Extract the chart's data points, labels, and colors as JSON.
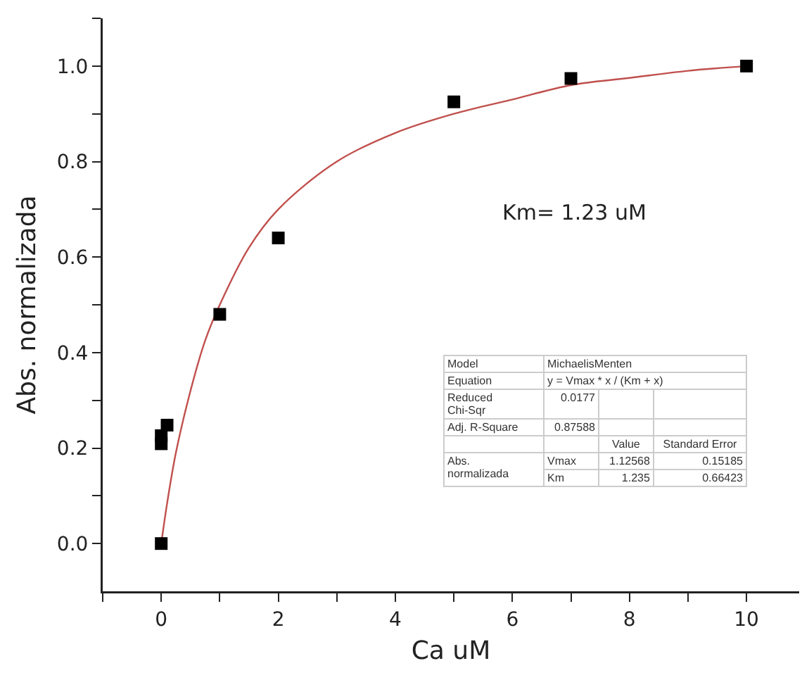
{
  "chart_data": {
    "type": "scatter",
    "xlabel": "Ca uM",
    "ylabel": "Abs. normalizada",
    "xlim": [
      -1,
      10.9
    ],
    "ylim": [
      -0.1,
      1.1
    ],
    "xticks": [
      {
        "value": -1,
        "label": null
      },
      0,
      {
        "value": 1,
        "label": null
      },
      2,
      {
        "value": 3,
        "label": null
      },
      4,
      {
        "value": 5,
        "label": null
      },
      6,
      {
        "value": 7,
        "label": null
      },
      8,
      {
        "value": 9,
        "label": null
      },
      10
    ],
    "yticks": [
      {
        "value": 0,
        "label": "0.0"
      },
      {
        "value": 0.1,
        "label": null
      },
      0.2,
      {
        "value": 0.3,
        "label": null
      },
      0.4,
      {
        "value": 0.5,
        "label": null
      },
      0.6,
      {
        "value": 0.7,
        "label": null
      },
      0.8,
      {
        "value": 0.9,
        "label": null
      },
      {
        "value": 1,
        "label": "1.0"
      },
      {
        "value": 1.1,
        "label": null
      }
    ],
    "grid": false,
    "legend": false,
    "series": [
      {
        "type": "line",
        "color": "#c0504d",
        "marker": "none",
        "line_style": "solid",
        "x": [
          0,
          0.1,
          0.25,
          0.5,
          0.75,
          1,
          1.5,
          2,
          3,
          4,
          5,
          6,
          7,
          8,
          9,
          10
        ],
        "values": [
          0,
          0.084,
          0.19,
          0.32,
          0.425,
          0.5,
          0.62,
          0.7,
          0.8,
          0.86,
          0.9,
          0.93,
          0.96,
          0.975,
          0.99,
          1.0
        ]
      },
      {
        "color": "#000000",
        "marker": "square",
        "x": [
          0,
          0,
          0,
          0.1,
          1,
          2,
          5,
          7,
          10
        ],
        "values": [
          0,
          0.209,
          0.226,
          0.248,
          0.48,
          0.64,
          0.925,
          0.974,
          1.0
        ]
      }
    ],
    "annotations": [
      "Km= 1.23 uM",
      "Model",
      "MichaelisMenten",
      "Equation",
      "y = Vmax * x / (Km + x)",
      "Reduced\nChi-Sqr",
      "0.0177",
      "Adj. R-Square",
      "0.87588",
      "Value",
      "Standard Error",
      "Abs.\nnormalizada",
      "Vmax",
      "1.12568",
      "0.15185",
      "Km",
      "1.235",
      "0.66423"
    ]
  }
}
